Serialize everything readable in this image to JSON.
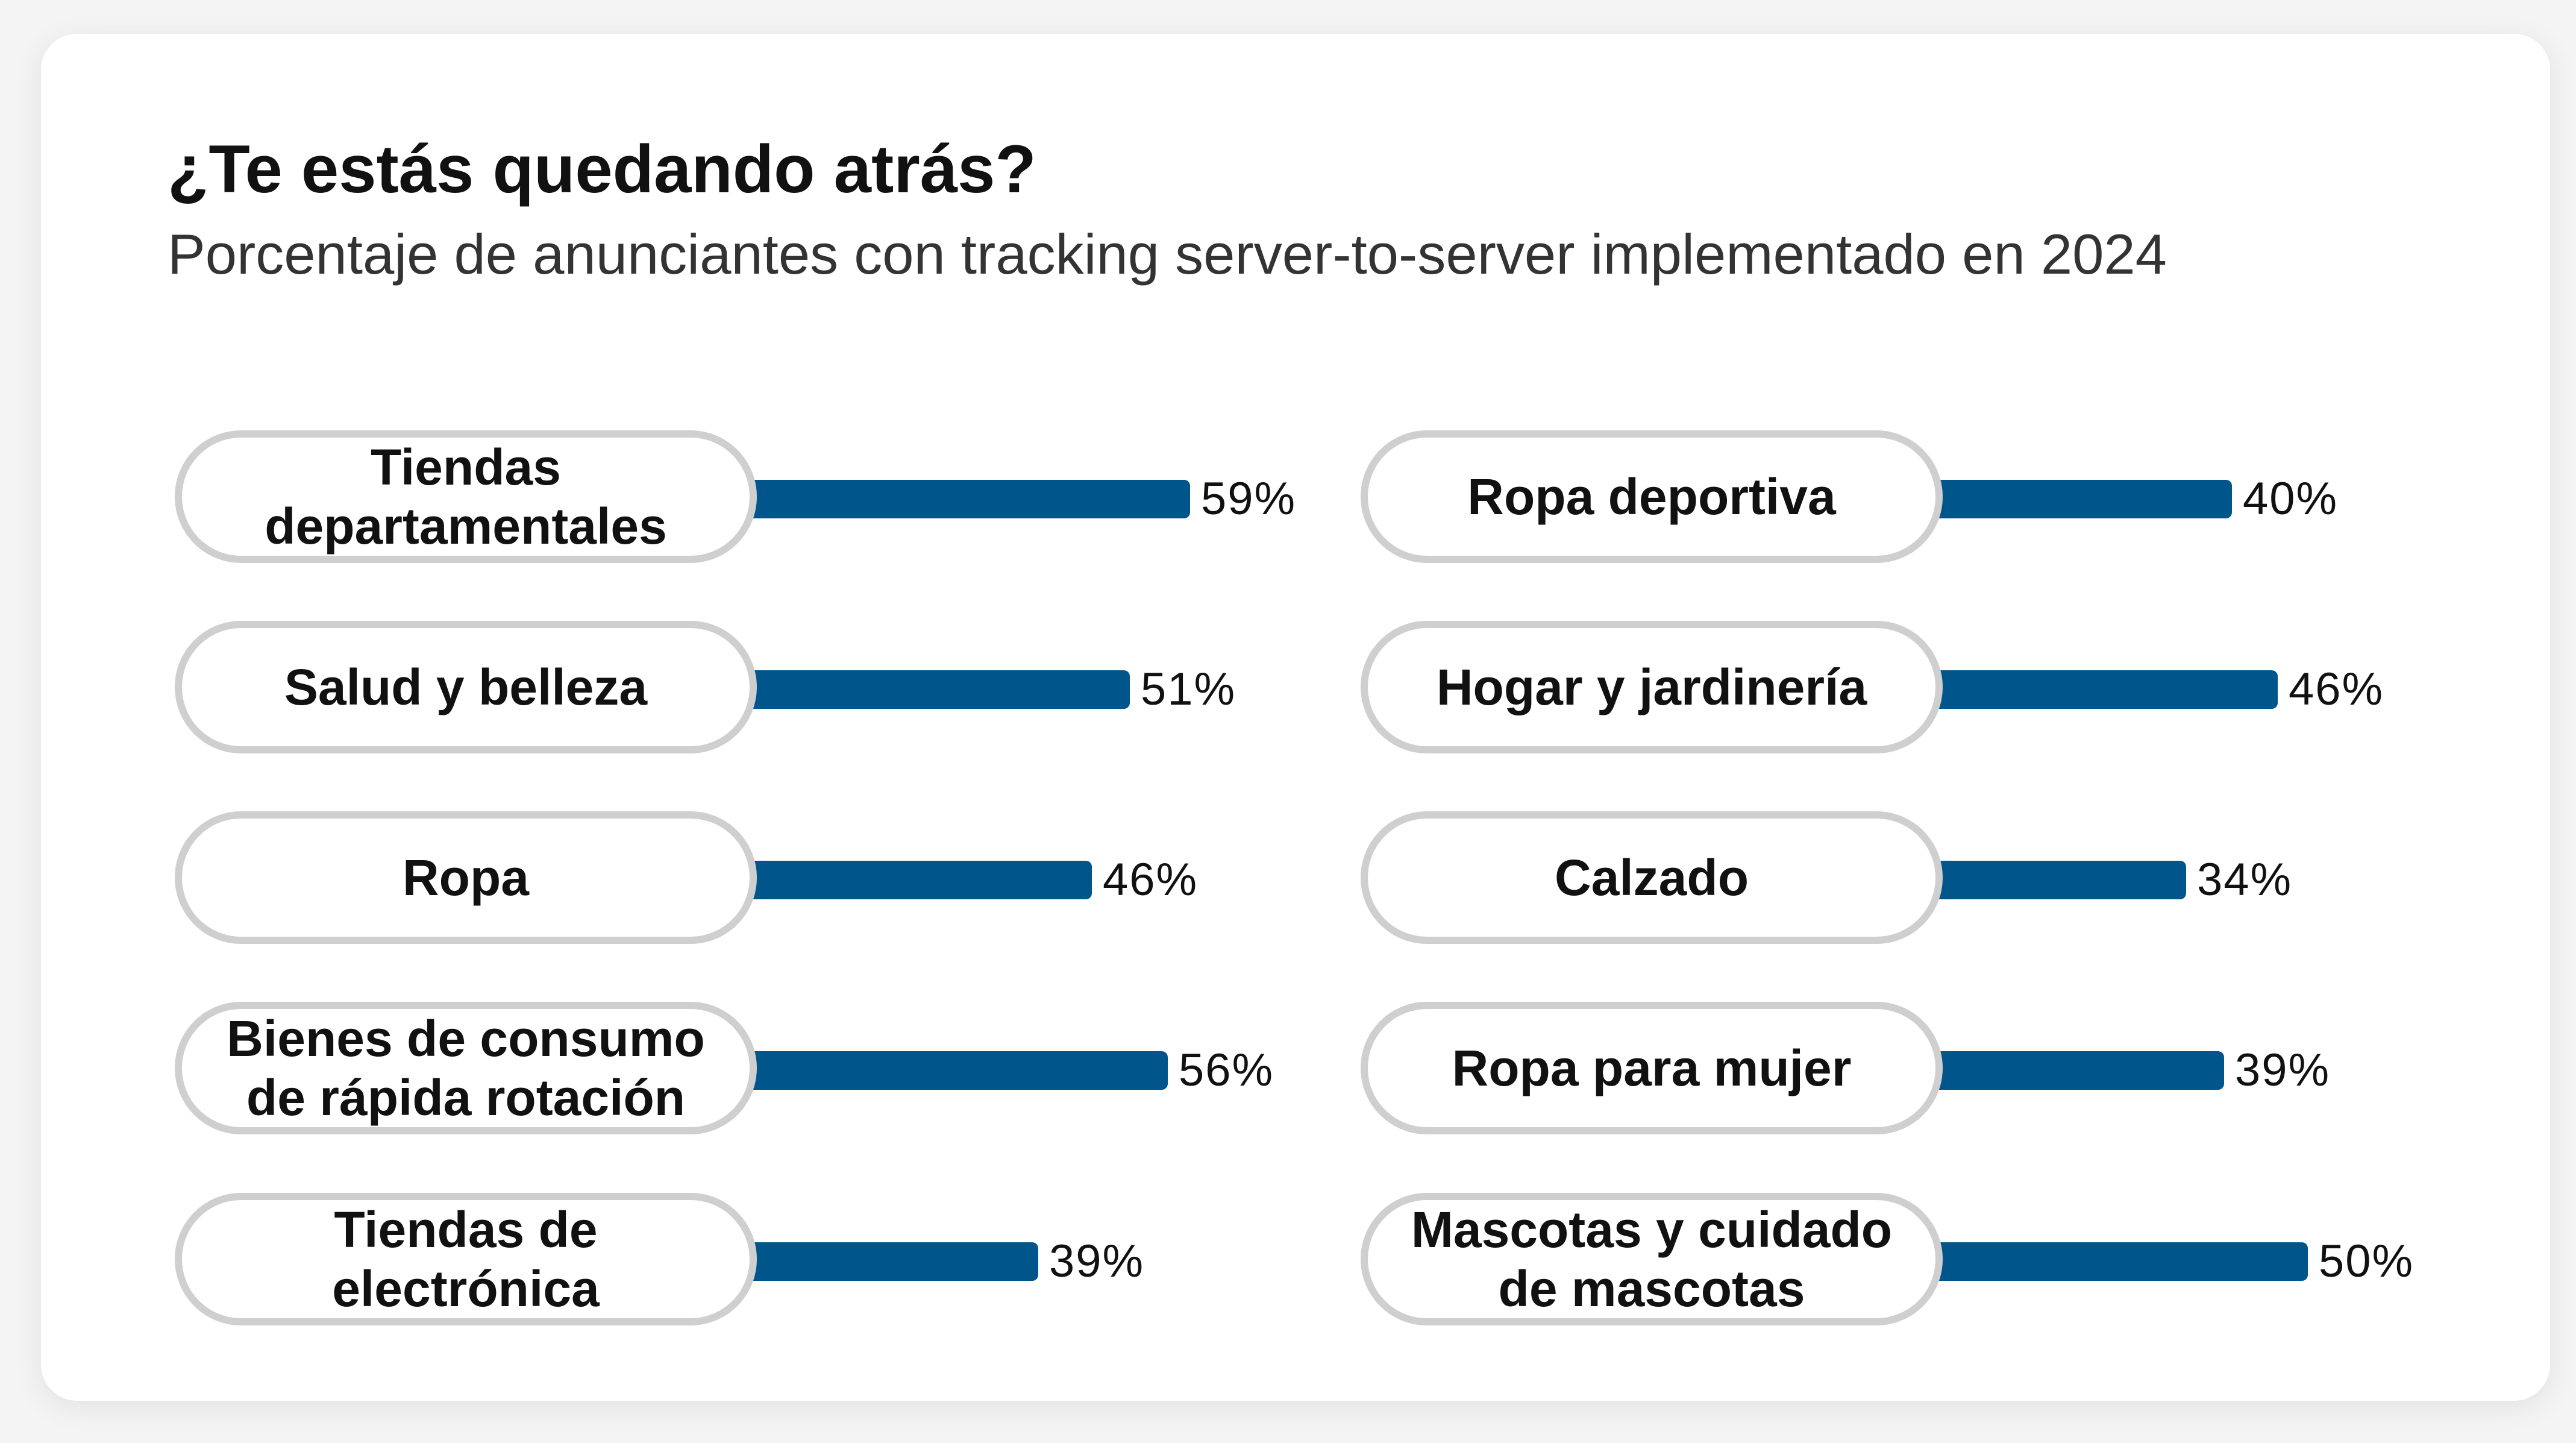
{
  "header": {
    "title": "¿Te estás quedando atrás?",
    "subtitle": "Porcentaje de anunciantes con tracking server-to-server implementado en 2024"
  },
  "colors": {
    "bar": "#00558b",
    "pill_border": "#cfcfcf",
    "card_background": "#ffffff",
    "page_background": "#f4f4f4"
  },
  "chart_data": {
    "type": "bar",
    "orientation": "horizontal",
    "title": "¿Te estás quedando atrás?",
    "subtitle": "Porcentaje de anunciantes con tracking server-to-server implementado en 2024",
    "xlim": [
      0,
      100
    ],
    "grid": false,
    "legend": "none",
    "columns": [
      {
        "categories": [
          "Tiendas departamentales",
          "Salud y belleza",
          "Ropa",
          "Bienes de consumo de rápida rotación",
          "Tiendas de electrónica"
        ],
        "values": [
          59,
          51,
          46,
          56,
          39
        ],
        "value_labels": [
          "59%",
          "51%",
          "46%",
          "56%",
          "39%"
        ]
      },
      {
        "categories": [
          "Ropa deportiva",
          "Hogar y jardinería",
          "Calzado",
          "Ropa para mujer",
          "Mascotas y cuidado de mascotas"
        ],
        "values": [
          40,
          46,
          34,
          39,
          50
        ],
        "value_labels": [
          "40%",
          "46%",
          "34%",
          "39%",
          "50%"
        ]
      }
    ]
  }
}
